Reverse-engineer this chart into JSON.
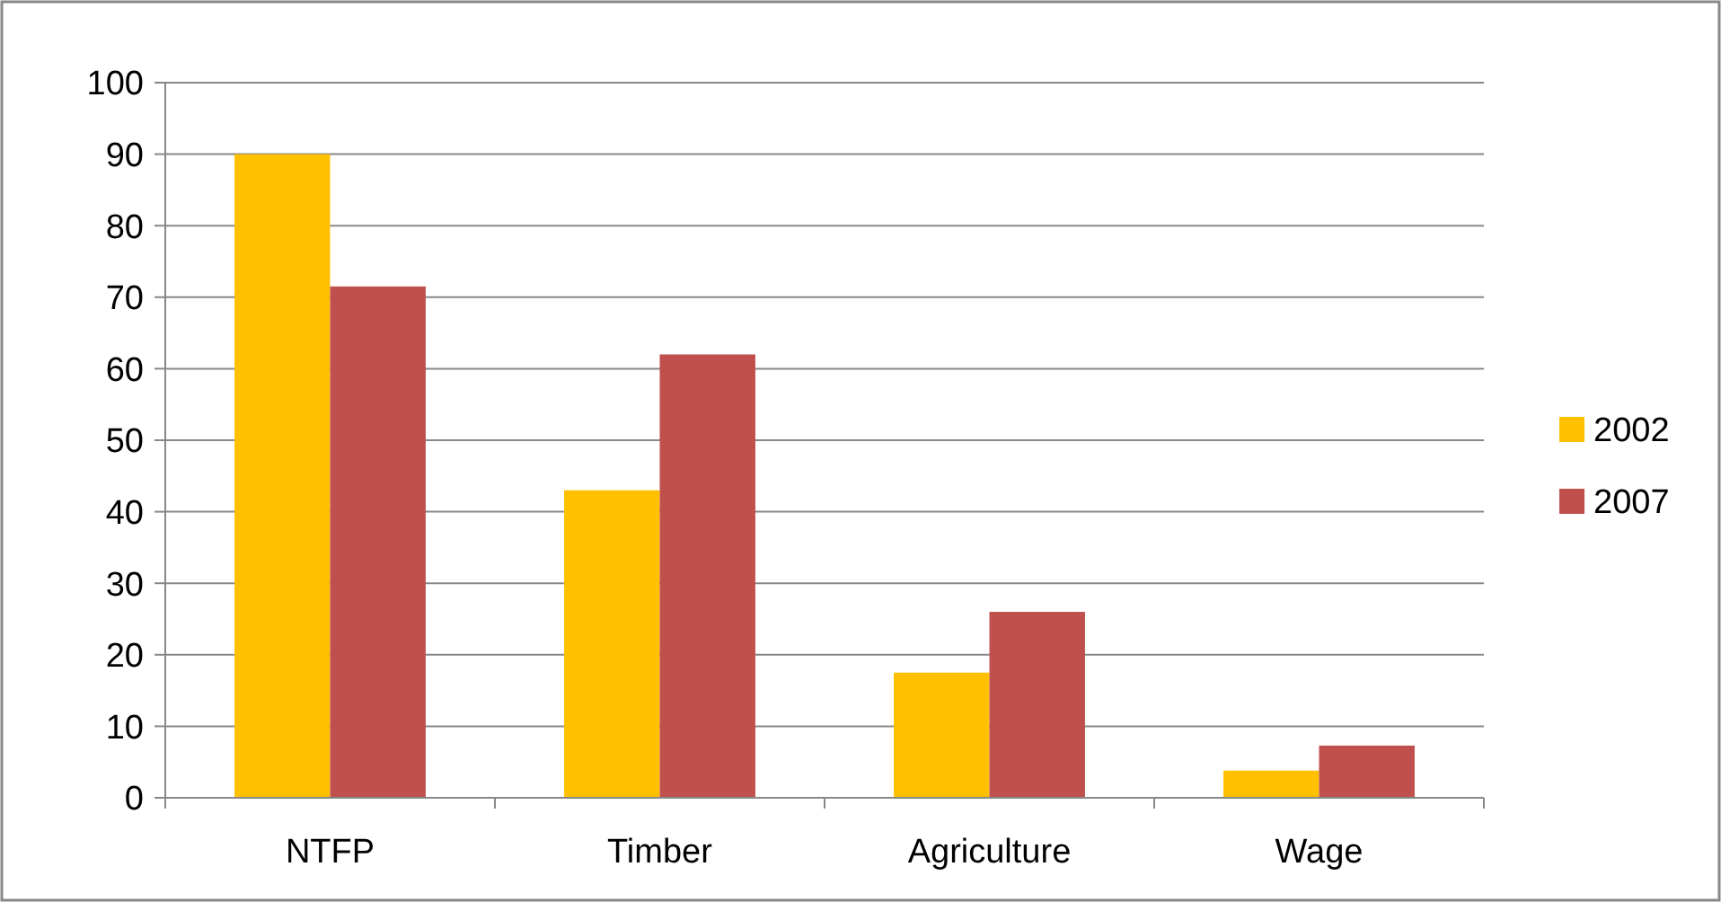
{
  "chart_data": {
    "type": "bar",
    "categories": [
      "NTFP",
      "Timber",
      "Agriculture",
      "Wage"
    ],
    "series": [
      {
        "name": "2002",
        "color": "#ffc000",
        "values": [
          90,
          43,
          17.5,
          3.8
        ]
      },
      {
        "name": "2007",
        "color": "#c0504d",
        "values": [
          71.5,
          62,
          26,
          7.3
        ]
      }
    ],
    "ylim": [
      0,
      100
    ],
    "yticks": [
      0,
      10,
      20,
      30,
      40,
      50,
      60,
      70,
      80,
      90,
      100
    ],
    "grid": "y",
    "legend": "right"
  }
}
